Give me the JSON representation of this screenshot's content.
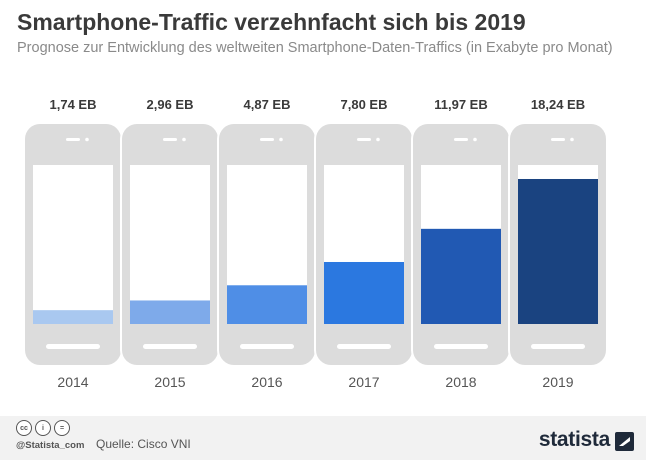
{
  "header": {
    "title": "Smartphone-Traffic verzehnfacht sich bis 2019",
    "subtitle": "Prognose zur Entwicklung des weltweiten Smartphone-Daten-Traffics (in Exabyte pro Monat)"
  },
  "footer": {
    "handle": "@Statista_com",
    "source": "Quelle: Cisco VNI",
    "brand": "statista",
    "license_icons": [
      "cc-icon",
      "by-icon",
      "nd-icon"
    ]
  },
  "colors": {
    "phone_body": "#dcdcdc",
    "screen": "#ffffff",
    "bars": [
      "#a9c8f0",
      "#7eaaea",
      "#4f8ee6",
      "#2b78e0",
      "#2159b3",
      "#1a4380"
    ]
  },
  "chart_data": {
    "type": "bar",
    "categories": [
      "2014",
      "2015",
      "2016",
      "2017",
      "2018",
      "2019"
    ],
    "values": [
      1.74,
      2.96,
      4.87,
      7.8,
      11.97,
      18.24
    ],
    "value_labels": [
      "1,74 EB",
      "2,96 EB",
      "4,87 EB",
      "7,80 EB",
      "11,97 EB",
      "18,24 EB"
    ],
    "unit": "Exabyte pro Monat",
    "ylim": [
      0,
      20
    ],
    "grid": false,
    "legend": "none"
  }
}
